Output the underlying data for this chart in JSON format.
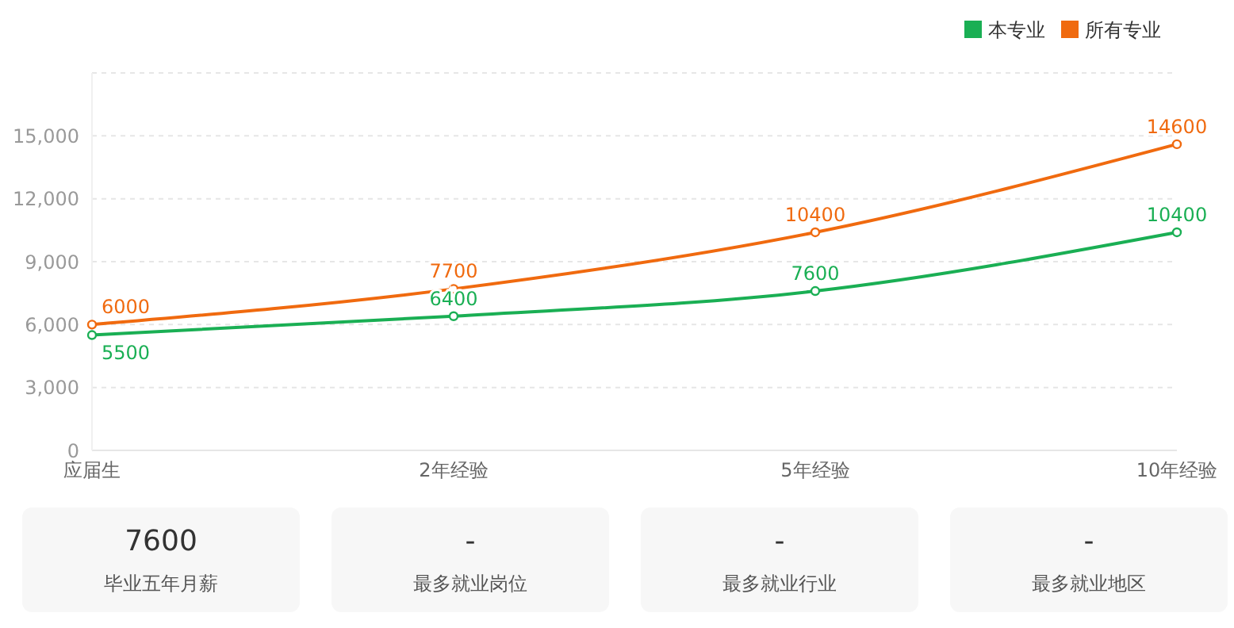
{
  "chart_data": [
    {
      "type": "line",
      "categories": [
        "应届生",
        "2年经验",
        "5年经验",
        "10年经验"
      ],
      "series": [
        {
          "name": "本专业",
          "color": "#1aaf54",
          "values": [
            5500,
            6400,
            7600,
            10400
          ]
        },
        {
          "name": "所有专业",
          "color": "#f06a0f",
          "values": [
            6000,
            7700,
            10400,
            14600
          ]
        }
      ],
      "ylim": [
        0,
        18000
      ],
      "yticks": [
        0,
        {
          "value": 3000,
          "label": "3,000"
        },
        {
          "value": 6000,
          "label": "6,000"
        },
        {
          "value": 9000,
          "label": "9,000"
        },
        {
          "value": 12000,
          "label": "12,000"
        },
        {
          "value": 15000,
          "label": "15,000"
        }
      ],
      "grid": "y",
      "legend": "top right",
      "marker": "circle",
      "line_style": "solid",
      "data_labels": true
    },
    {
      "type": "other",
      "annotations": [
        "7600",
        "毕业五年月薪",
        "-",
        "最多就业岗位",
        "-",
        "最多就业行业",
        "-",
        "最多就业地区"
      ]
    }
  ]
}
